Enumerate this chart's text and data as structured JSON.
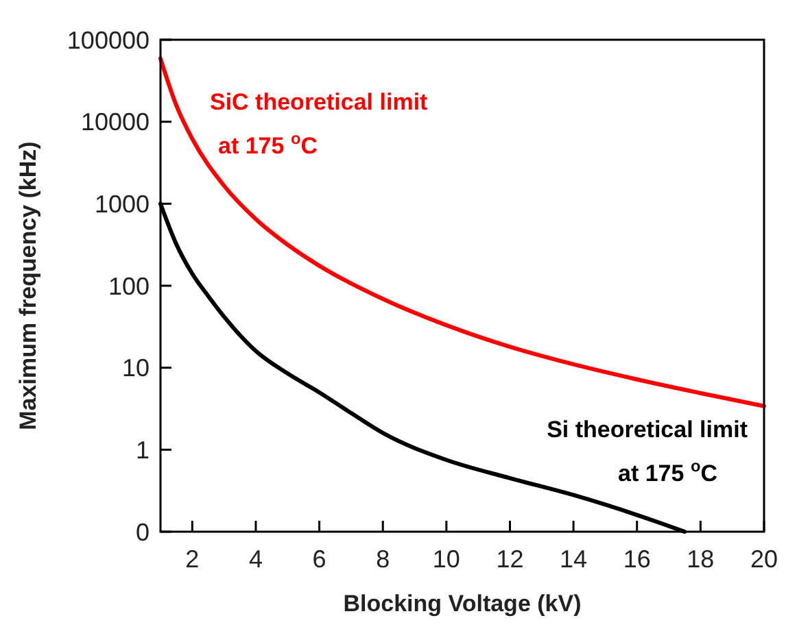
{
  "chart_data": {
    "type": "line",
    "xlabel": "Blocking Voltage (kV)",
    "ylabel": "Maximum frequency (kHz)",
    "log": "y",
    "xlim": [
      1,
      20
    ],
    "xticks": [
      2,
      4,
      6,
      8,
      10,
      12,
      14,
      16,
      18,
      20
    ],
    "ylim": [
      0.1,
      100000
    ],
    "yticks": [
      {
        "value": 0.1,
        "label": "0"
      },
      1,
      10,
      100,
      1000,
      10000,
      100000
    ],
    "legend": false,
    "grid": false,
    "line_style": "solid",
    "marker": "none",
    "series": [
      {
        "name": "SiC theoretical limit at 175 $^{o}$C",
        "color": "#ff0000",
        "x": [
          1,
          1.5,
          2,
          3,
          4,
          5,
          6,
          8,
          10,
          12,
          14,
          16,
          18,
          20
        ],
        "values": [
          59000,
          15800,
          6200,
          1660,
          650,
          317,
          175,
          69,
          33,
          18,
          11,
          7.2,
          4.9,
          3.4
        ]
      },
      {
        "name": "Si theoretical limit at 175 $^{o}$C",
        "color": "#000000",
        "x": [
          1,
          1.5,
          2,
          2.5,
          3,
          4,
          5,
          6,
          7,
          8,
          10,
          12,
          14,
          16,
          17.5
        ],
        "values": [
          1000,
          320,
          140,
          75,
          42,
          16,
          8.5,
          5,
          2.8,
          1.6,
          0.75,
          0.45,
          0.28,
          0.16,
          0.1
        ]
      }
    ]
  }
}
